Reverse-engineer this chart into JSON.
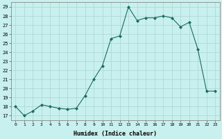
{
  "x": [
    0,
    1,
    2,
    3,
    4,
    5,
    6,
    7,
    8,
    9,
    10,
    11,
    12,
    13,
    14,
    15,
    16,
    17,
    18,
    19,
    20,
    21,
    22,
    23
  ],
  "y": [
    18,
    17,
    17.5,
    18.2,
    18,
    17.8,
    17.7,
    17.8,
    19.2,
    21,
    22.5,
    25.5,
    25.8,
    29,
    27.5,
    27.8,
    27.8,
    28,
    27.8,
    26.8,
    27.3,
    24.3,
    19.7,
    19.7
  ],
  "line_color": "#1a6b5e",
  "marker_color": "#1a6b5e",
  "bg_color": "#c8f0ee",
  "grid_color": "#b0d8d4",
  "xlabel": "Humidex (Indice chaleur)",
  "ylabel_ticks": [
    17,
    18,
    19,
    20,
    21,
    22,
    23,
    24,
    25,
    26,
    27,
    28,
    29
  ],
  "ylim": [
    16.5,
    29.5
  ],
  "xlim": [
    -0.5,
    23.5
  ]
}
